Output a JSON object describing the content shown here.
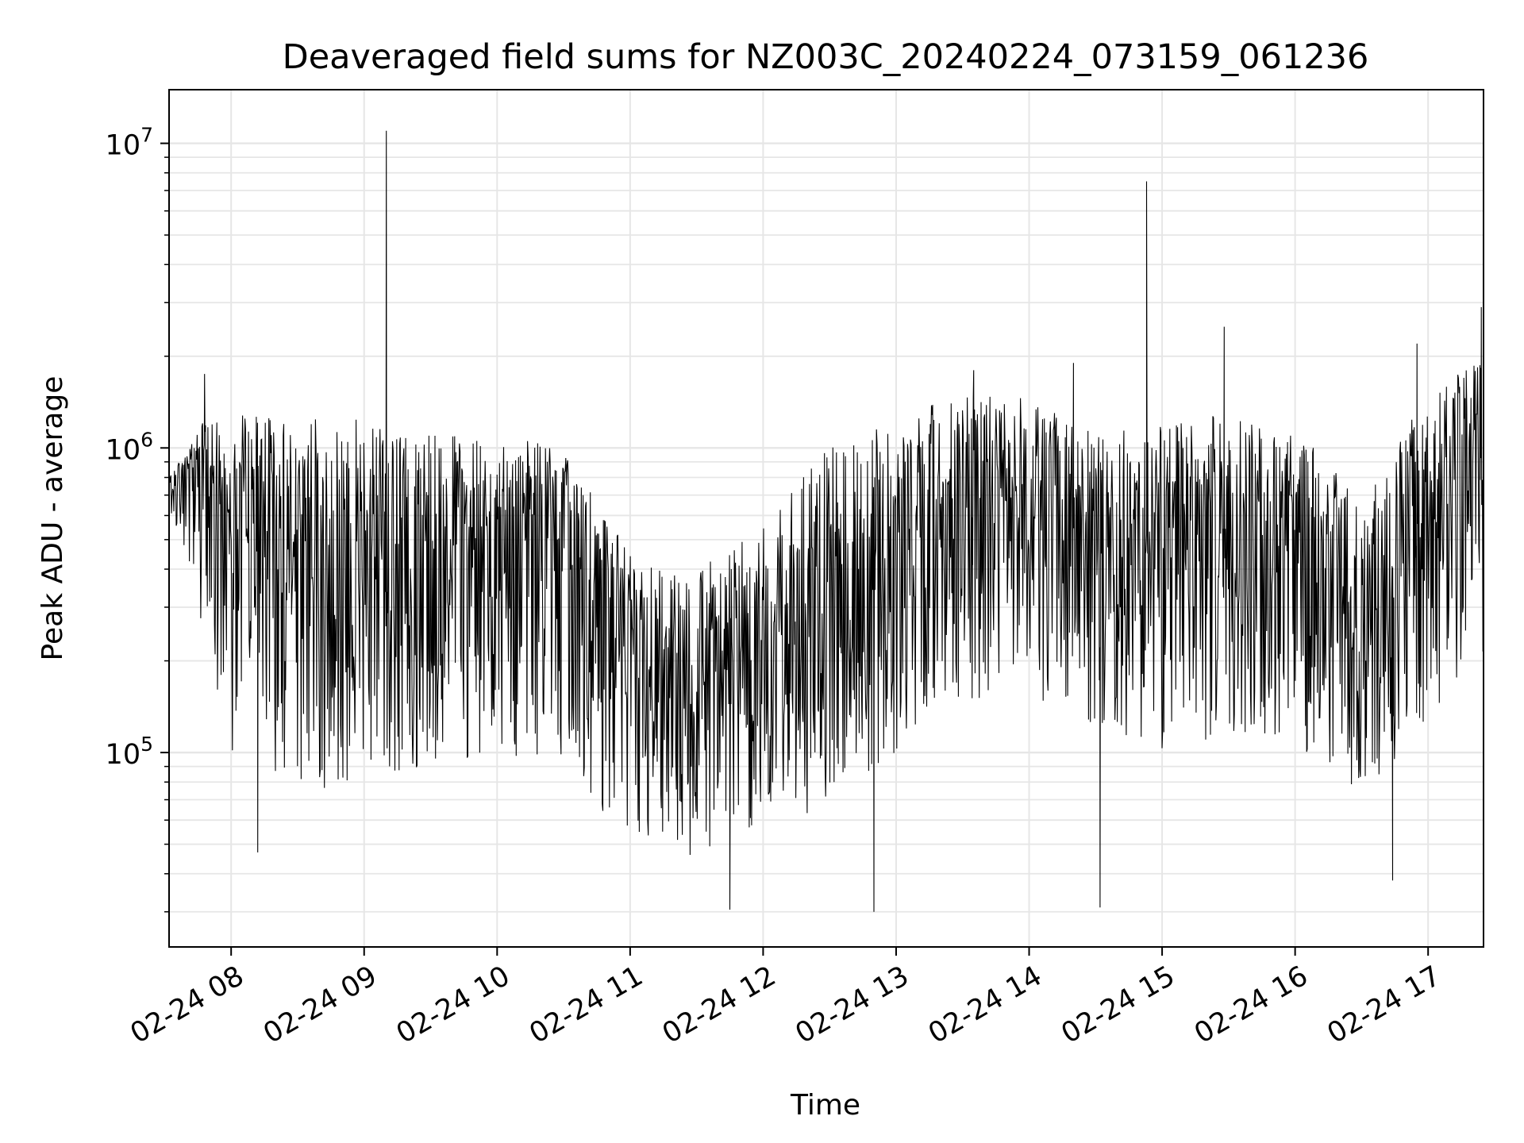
{
  "chart_data": {
    "type": "line",
    "title": "Deaveraged field sums for NZ003C_20240224_073159_061236",
    "xlabel": "Time",
    "ylabel": "Peak ADU - average",
    "yscale": "log",
    "x_range": [
      "2024-02-24 07:32",
      "2024-02-24 17:25"
    ],
    "y_range": [
      23000,
      15000000
    ],
    "grid": true,
    "line_color": "#000000",
    "x_ticks": [
      "02-24 08",
      "02-24 09",
      "02-24 10",
      "02-24 11",
      "02-24 12",
      "02-24 13",
      "02-24 14",
      "02-24 15",
      "02-24 16",
      "02-24 17"
    ],
    "y_ticks": [
      {
        "base": "10",
        "exp": "5",
        "value": 100000
      },
      {
        "base": "10",
        "exp": "6",
        "value": 1000000
      },
      {
        "base": "10",
        "exp": "7",
        "value": 10000000
      }
    ],
    "series": [
      {
        "x": [
          "2024-02-24 07:32",
          "2024-02-24 07:45",
          "2024-02-24 08:00",
          "2024-02-24 08:30",
          "2024-02-24 09:00",
          "2024-02-24 09:30",
          "2024-02-24 10:00",
          "2024-02-24 10:30",
          "2024-02-24 11:00",
          "2024-02-24 11:30",
          "2024-02-24 12:00",
          "2024-02-24 12:30",
          "2024-02-24 13:00",
          "2024-02-24 13:30",
          "2024-02-24 14:00",
          "2024-02-24 14:30",
          "2024-02-24 15:00",
          "2024-02-24 15:30",
          "2024-02-24 16:00",
          "2024-02-24 16:30",
          "2024-02-24 17:00",
          "2024-02-24 17:25"
        ],
        "y": [
          700000,
          900000,
          500000,
          400000,
          330000,
          350000,
          450000,
          500000,
          170000,
          130000,
          160000,
          250000,
          400000,
          600000,
          550000,
          450000,
          450000,
          550000,
          500000,
          220000,
          500000,
          800000
        ],
        "band_low": [
          650000,
          300000,
          100000,
          80000,
          70000,
          90000,
          100000,
          90000,
          50000,
          45000,
          50000,
          70000,
          100000,
          150000,
          150000,
          120000,
          100000,
          110000,
          100000,
          70000,
          120000,
          200000
        ],
        "band_high": [
          800000,
          1200000,
          1300000,
          1250000,
          1300000,
          1100000,
          1100000,
          1000000,
          450000,
          400000,
          600000,
          1000000,
          1300000,
          1500000,
          1500000,
          1100000,
          1200000,
          1300000,
          1150000,
          700000,
          1500000,
          2000000
        ],
        "spikes": [
          {
            "x": "2024-02-24 09:10",
            "y": 11000000
          },
          {
            "x": "2024-02-24 14:53",
            "y": 7500000
          },
          {
            "x": "2024-02-24 15:28",
            "y": 2500000
          },
          {
            "x": "2024-02-24 16:55",
            "y": 2200000
          },
          {
            "x": "2024-02-24 17:24",
            "y": 2900000
          },
          {
            "x": "2024-02-24 07:48",
            "y": 1750000
          },
          {
            "x": "2024-02-24 13:35",
            "y": 1800000
          },
          {
            "x": "2024-02-24 14:20",
            "y": 1900000
          },
          {
            "x": "2024-02-24 12:50",
            "y": 30000
          },
          {
            "x": "2024-02-24 14:32",
            "y": 31000
          },
          {
            "x": "2024-02-24 11:45",
            "y": 30500
          },
          {
            "x": "2024-02-24 08:12",
            "y": 47000
          },
          {
            "x": "2024-02-24 16:44",
            "y": 38000
          }
        ]
      }
    ]
  }
}
